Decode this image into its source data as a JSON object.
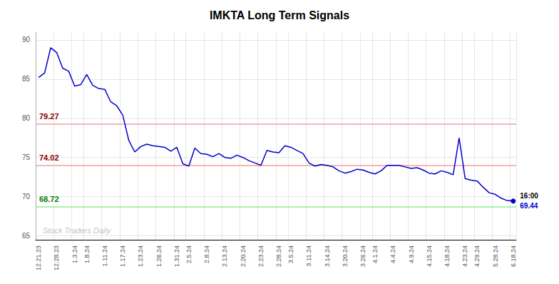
{
  "chart_data": {
    "type": "line",
    "title": "IMKTA Long Term Signals",
    "categories": [
      "12.21.23",
      null,
      null,
      "12.28.23",
      null,
      null,
      "1.3.24",
      null,
      "1.8.24",
      null,
      null,
      "1.11.24",
      null,
      null,
      "1.17.24",
      null,
      null,
      "1.23.24",
      null,
      null,
      "1.26.24",
      null,
      null,
      "1.31.24",
      null,
      "2.5.24",
      null,
      null,
      "2.8.24",
      null,
      null,
      "2.13.24",
      null,
      null,
      "2.20.24",
      null,
      null,
      "2.23.24",
      null,
      null,
      "2.28.24",
      null,
      "3.5.24",
      null,
      null,
      "3.11.24",
      null,
      null,
      "3.14.24",
      null,
      null,
      "3.20.24",
      null,
      null,
      "3.26.24",
      null,
      "4.1.24",
      null,
      null,
      "4.4.24",
      null,
      null,
      "4.9.24",
      null,
      null,
      "4.15.24",
      null,
      null,
      "4.18.24",
      null,
      null,
      "4.23.24",
      null,
      "4.29.24",
      null,
      null,
      "5.28.24",
      null,
      null,
      "6.18.24"
    ],
    "values": [
      85.2,
      85.8,
      89.0,
      88.4,
      86.4,
      86.0,
      84.1,
      84.3,
      85.6,
      84.2,
      83.8,
      83.7,
      82.1,
      81.6,
      80.4,
      77.2,
      75.7,
      76.4,
      76.7,
      76.5,
      76.4,
      76.3,
      75.8,
      76.3,
      74.2,
      73.9,
      76.2,
      75.5,
      75.4,
      75.1,
      75.5,
      75.0,
      74.9,
      75.3,
      75.0,
      74.6,
      74.3,
      74.0,
      75.9,
      75.7,
      75.6,
      76.5,
      76.3,
      75.9,
      75.5,
      74.3,
      73.9,
      74.1,
      74.0,
      73.8,
      73.3,
      73.0,
      73.2,
      73.5,
      73.4,
      73.1,
      72.9,
      73.3,
      74.0,
      74.0,
      74.0,
      73.8,
      73.6,
      73.7,
      73.4,
      73.0,
      72.9,
      73.3,
      73.1,
      72.8,
      77.5,
      72.3,
      72.1,
      72.0,
      71.2,
      70.5,
      70.3,
      69.8,
      69.5,
      69.44
    ],
    "color": "#0000cc",
    "ylim": [
      64.5,
      91
    ],
    "yticks": [
      65,
      70,
      75,
      80,
      85,
      90
    ],
    "grid": true,
    "hlines": [
      {
        "value": 79.27,
        "color": "#f0a0a0",
        "label_color": "darkred"
      },
      {
        "value": 74.02,
        "color": "#f0a0a0",
        "label_color": "darkred"
      },
      {
        "value": 68.72,
        "color": "#90ee90",
        "label_color": "green"
      }
    ],
    "last_point": {
      "time_label": "16:00",
      "price_label": "69.44"
    },
    "watermark": "Stock Traders Daily"
  }
}
